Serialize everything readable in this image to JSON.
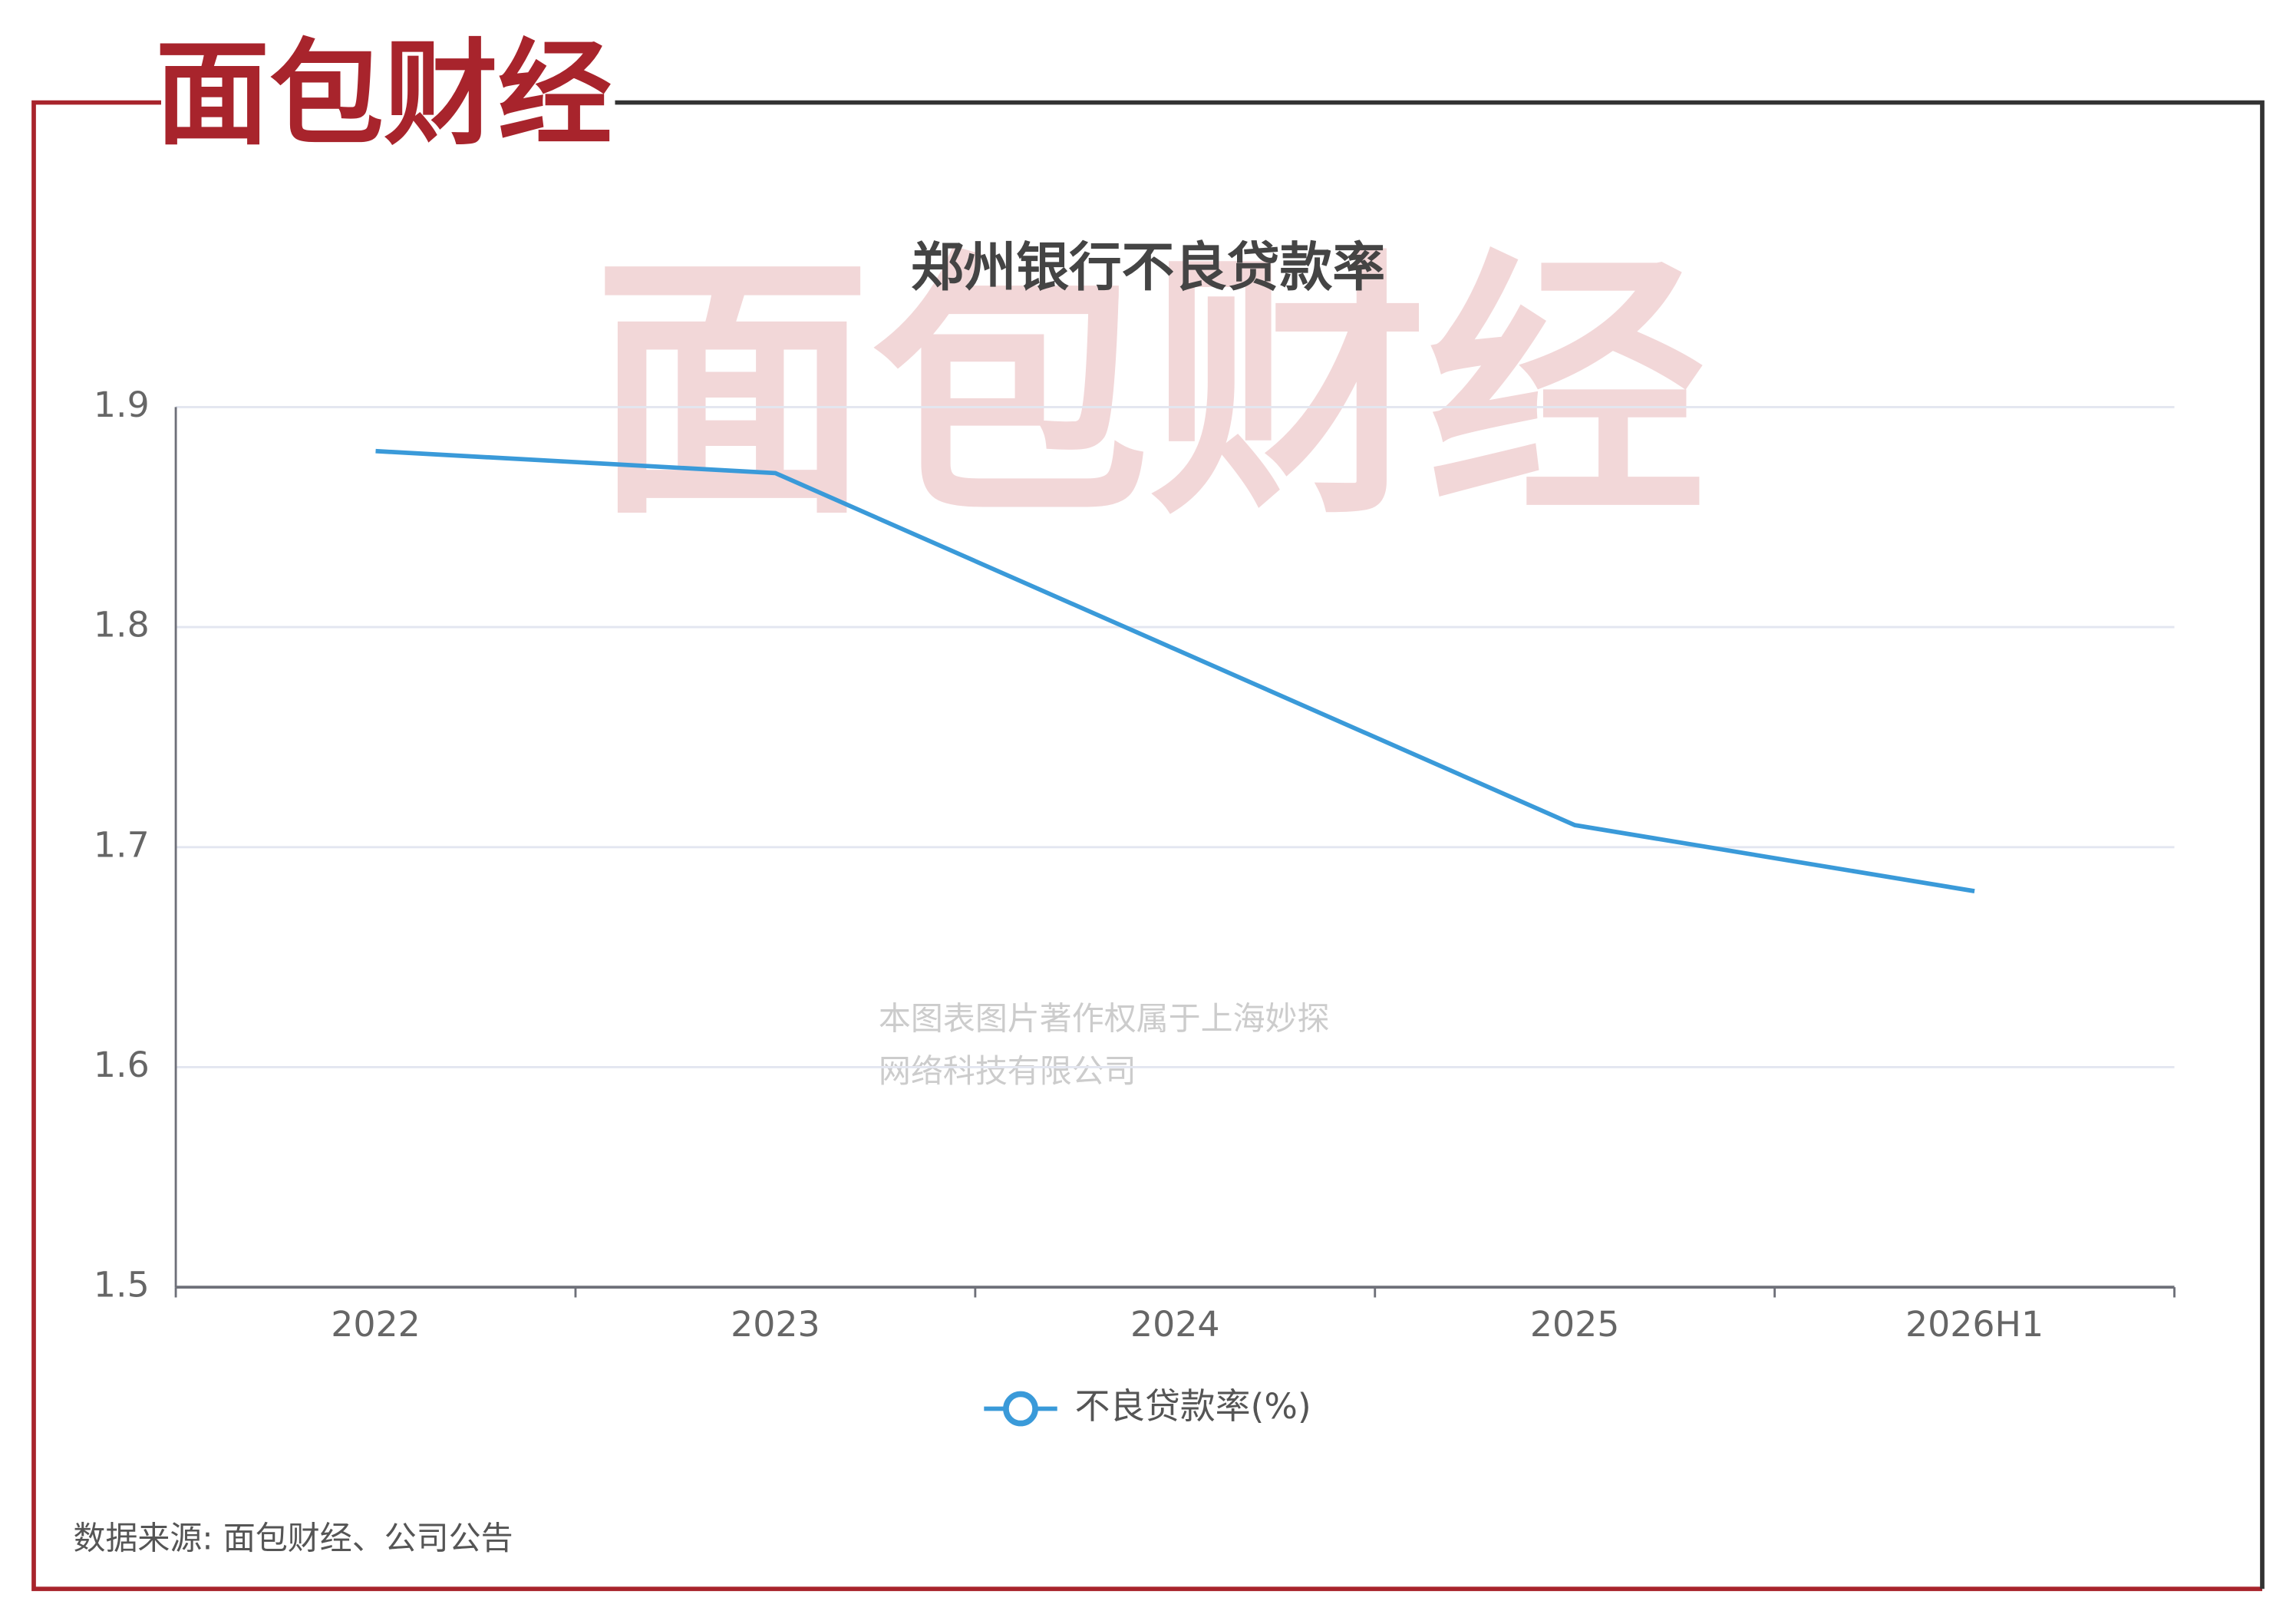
{
  "brand": "面包财经",
  "watermark": [
    "本图表图片著作权属于上海妙探",
    "网络科技有限公司"
  ],
  "source": "数据来源: 面包财经、公司公告",
  "chart_data": {
    "type": "line",
    "title": "郑州银行不良贷款率",
    "categories": [
      "2022",
      "2023",
      "2024",
      "2025",
      "2026H1"
    ],
    "series": [
      {
        "name": "不良贷款率(%)",
        "color": "#3a9ad9",
        "values": [
          1.88,
          1.87,
          1.79,
          1.71,
          1.68
        ]
      }
    ],
    "ylim": [
      1.5,
      1.9
    ],
    "yticks": [
      1.5,
      1.6,
      1.7,
      1.8,
      1.9
    ],
    "grid": true,
    "legend": "bottom"
  }
}
